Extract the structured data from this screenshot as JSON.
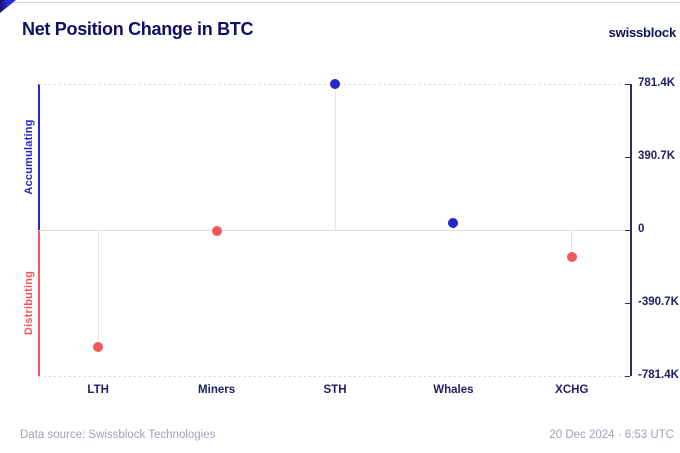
{
  "header": {
    "title": "Net Position Change in BTC",
    "brand": "swissblock"
  },
  "side_labels": {
    "accumulating": "Accumulating",
    "distributing": "Distributing"
  },
  "footer": {
    "source": "Data source: Swissblock Technologies",
    "timestamp": "20 Dec 2024 · 6:53 UTC"
  },
  "colors": {
    "accumulating_blue": "#2626cd",
    "distributing_red": "#f4585c",
    "navy_text": "#1e2263",
    "axis_navy": "#2b3065",
    "grid_gray": "#dfdfe3",
    "dotted_gray": "#c8c8ce",
    "footer_gray": "#9fa2b8"
  },
  "chart_data": {
    "type": "scatter",
    "subtype": "lollipop",
    "title": "Net Position Change in BTC",
    "categories": [
      "LTH",
      "Miners",
      "STH",
      "Whales",
      "XCHG"
    ],
    "values": [
      -626000,
      -3000,
      781400,
      35000,
      -145000
    ],
    "point_sides": [
      "distributing",
      "distributing",
      "accumulating",
      "accumulating",
      "distributing"
    ],
    "ylabel_positive": "Accumulating",
    "ylabel_negative": "Distributing",
    "ylim": [
      -781400,
      781400
    ],
    "yticks": [
      {
        "value": 781400,
        "label": "781.4K"
      },
      {
        "value": 390700,
        "label": "390.7K"
      },
      {
        "value": 0,
        "label": "0"
      },
      {
        "value": -390700,
        "label": "-390.7K"
      },
      {
        "value": -781400,
        "label": "-781.4K"
      }
    ],
    "legend": "none",
    "grid": "solid zero line; dotted lines at +max and -max; stems from zero to each point",
    "xlabel": "",
    "ylabel": ""
  }
}
